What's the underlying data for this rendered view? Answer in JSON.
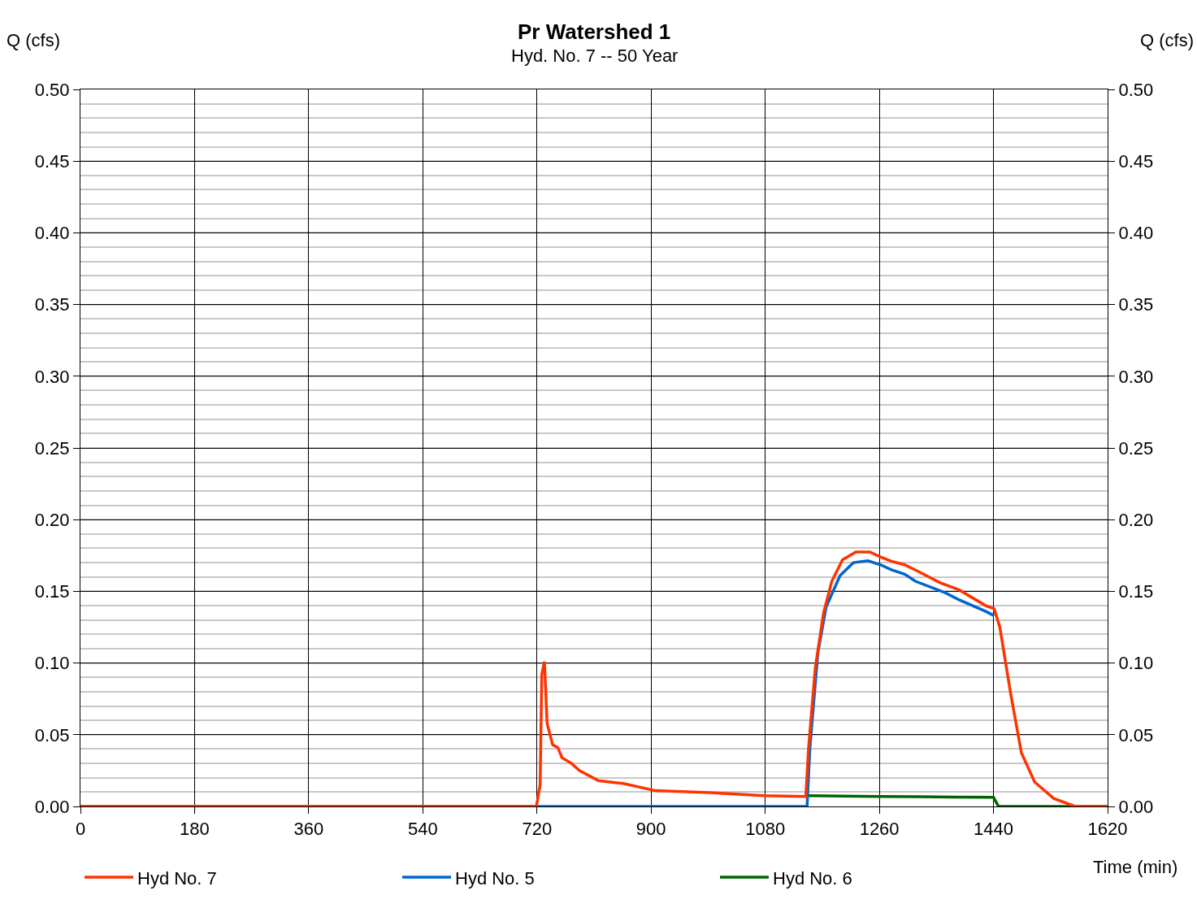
{
  "chart_data": {
    "type": "line",
    "title": "Pr Watershed 1",
    "subtitle": "Hyd. No. 7 -- 50 Year",
    "xlabel": "Time (min)",
    "ylabel": "Q (cfs)",
    "y2label": "Q (cfs)",
    "xlim": [
      0,
      1620
    ],
    "xticks": [
      0,
      180,
      360,
      540,
      720,
      900,
      1080,
      1260,
      1440,
      1620
    ],
    "ylim": [
      0,
      0.5
    ],
    "yticks": [
      {
        "value": 0,
        "label": "0.00"
      },
      {
        "value": 0.05,
        "label": "0.05"
      },
      {
        "value": 0.1,
        "label": "0.10"
      },
      {
        "value": 0.15,
        "label": "0.15"
      },
      {
        "value": 0.2,
        "label": "0.20"
      },
      {
        "value": 0.25,
        "label": "0.25"
      },
      {
        "value": 0.3,
        "label": "0.30"
      },
      {
        "value": 0.35,
        "label": "0.35"
      },
      {
        "value": 0.4,
        "label": "0.40"
      },
      {
        "value": 0.45,
        "label": "0.45"
      },
      {
        "value": 0.5,
        "label": "0.50"
      }
    ],
    "y2lim": [
      0,
      0.5
    ],
    "y2ticks": [
      {
        "value": 0,
        "label": "0.00"
      },
      {
        "value": 0.05,
        "label": "0.05"
      },
      {
        "value": 0.1,
        "label": "0.10"
      },
      {
        "value": 0.15,
        "label": "0.15"
      },
      {
        "value": 0.2,
        "label": "0.20"
      },
      {
        "value": 0.25,
        "label": "0.25"
      },
      {
        "value": 0.3,
        "label": "0.30"
      },
      {
        "value": 0.35,
        "label": "0.35"
      },
      {
        "value": 0.4,
        "label": "0.40"
      },
      {
        "value": 0.45,
        "label": "0.45"
      },
      {
        "value": 0.5,
        "label": "0.50"
      }
    ],
    "grid": true,
    "legend": "bottom left",
    "marker": "none",
    "line_style": "solid",
    "series": [
      {
        "name": "Hyd No. 6",
        "color": "#006400",
        "x": [
          1144,
          1200,
          1260,
          1320,
          1380,
          1440,
          1448,
          1620
        ],
        "values": [
          0.0075,
          0.0072,
          0.007,
          0.0068,
          0.0065,
          0.0064,
          0,
          0
        ]
      },
      {
        "name": "Hyd No. 5",
        "color": "#0066cc",
        "x": [
          0,
          1146,
          1150.5,
          1163,
          1176,
          1198,
          1219,
          1242,
          1262,
          1279,
          1300,
          1317,
          1364,
          1386,
          1428,
          1441
        ],
        "values": [
          0,
          0,
          0.041,
          0.107,
          0.139,
          0.161,
          0.17,
          0.1713,
          0.1685,
          0.165,
          0.162,
          0.157,
          0.149,
          0.144,
          0.136,
          0.133
        ]
      },
      {
        "name": "Hyd No. 7",
        "color": "#ff3300",
        "x": [
          0,
          719,
          725,
          727.6,
          731.8,
          736,
          744.7,
          753,
          759.5,
          774.5,
          787,
          817,
          856,
          907,
          992,
          1078,
          1144,
          1148.4,
          1159,
          1172,
          1185,
          1202,
          1223,
          1245,
          1262,
          1279,
          1300,
          1321,
          1356,
          1386,
          1428,
          1441,
          1450,
          1467,
          1484,
          1505,
          1535,
          1569,
          1620
        ],
        "values": [
          0,
          0,
          0.015,
          0.092,
          0.101,
          0.058,
          0.043,
          0.041,
          0.034,
          0.03,
          0.025,
          0.018,
          0.016,
          0.011,
          0.0097,
          0.0075,
          0.007,
          0.041,
          0.097,
          0.135,
          0.157,
          0.172,
          0.1775,
          0.1775,
          0.174,
          0.171,
          0.1685,
          0.164,
          0.156,
          0.151,
          0.14,
          0.138,
          0.125,
          0.079,
          0.0375,
          0.017,
          0.0056,
          0,
          0
        ]
      }
    ]
  }
}
